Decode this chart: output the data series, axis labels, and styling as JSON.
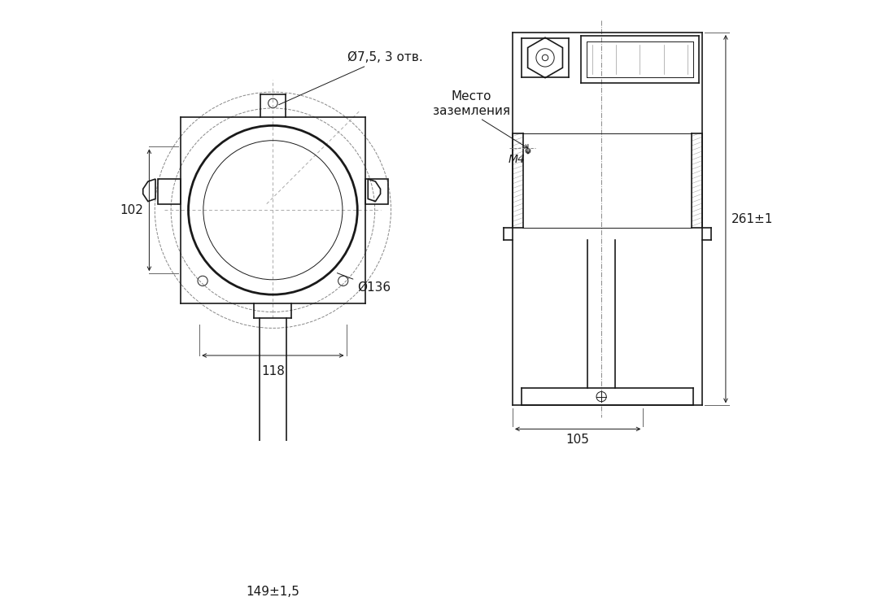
{
  "bg_color": "#ffffff",
  "line_color": "#1a1a1a",
  "dim_color": "#1a1a1a",
  "thin_lw": 0.7,
  "med_lw": 1.2,
  "thick_lw": 2.0,
  "dash_pattern": [
    4,
    3
  ],
  "dot_dash_pattern": [
    6,
    2,
    1,
    2
  ],
  "labels": {
    "d75_3": "Ø7,5, 3 отв.",
    "d136": "Ø136",
    "dim_102": "102",
    "dim_118": "118",
    "dim_149": "149±1,5",
    "mesto": "Место\nзаземления",
    "m4": "M4",
    "dim_261": "261±1",
    "dim_105": "105"
  },
  "font_size": 11,
  "font_size_small": 10
}
